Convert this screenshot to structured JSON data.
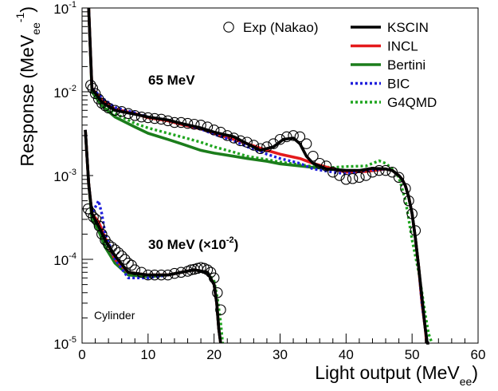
{
  "chart_data": {
    "type": "line",
    "xlabel": "Light output (MeV",
    "xlabel_sub": "ee",
    "xlabel_tail": ")",
    "ylabel": "Response (MeV",
    "ylabel_sub": "ee",
    "ylabel_sup": "-1",
    "ylabel_tail": ")",
    "xlim": [
      0,
      60
    ],
    "ylim": [
      1e-05,
      0.1
    ],
    "yscale": "log",
    "grid": false,
    "legend_position": "top-right",
    "x_ticks": [
      "0",
      "10",
      "20",
      "30",
      "40",
      "50",
      "60"
    ],
    "y_ticks": [
      {
        "base": "10",
        "exp": "-5",
        "value": 1e-05
      },
      {
        "base": "10",
        "exp": "-4",
        "value": 0.0001
      },
      {
        "base": "10",
        "exp": "-3",
        "value": 0.001
      },
      {
        "base": "10",
        "exp": "-2",
        "value": 0.01
      },
      {
        "base": "10",
        "exp": "-1",
        "value": 0.1
      }
    ],
    "annotations": {
      "e65": "65 MeV",
      "e30_main": "30 MeV (×10",
      "e30_exp": "-2",
      "e30_tail": ")",
      "geometry": "Cylinder"
    },
    "legend": [
      {
        "name": "Exp (Nakao)",
        "style": "marker"
      },
      {
        "name": "KSCIN",
        "style": "line"
      },
      {
        "name": "INCL",
        "style": "line"
      },
      {
        "name": "Bertini",
        "style": "line"
      },
      {
        "name": "BIC",
        "style": "line"
      },
      {
        "name": "G4QMD",
        "style": "line"
      }
    ],
    "colors": {
      "KSCIN": "#000000",
      "INCL": "#e41a1c",
      "Bertini": "#1b7d1b",
      "BIC": "#1f1fdc",
      "G4QMD": "#1fa51f"
    },
    "series": [
      {
        "name": "KSCIN",
        "group": "65 MeV",
        "x": [
          1.0,
          1.5,
          3,
          5,
          8,
          10,
          13,
          15,
          18,
          20,
          23,
          25,
          27,
          29,
          30.5,
          32,
          33,
          34,
          35,
          37,
          40,
          42,
          44,
          46,
          47,
          48,
          48.5,
          49,
          49.5,
          50,
          50.5,
          51,
          51.5,
          52,
          52.3,
          52.6
        ],
        "y": [
          0.1,
          0.011,
          0.0075,
          0.006,
          0.0054,
          0.005,
          0.0046,
          0.0042,
          0.0037,
          0.0033,
          0.0029,
          0.0024,
          0.002,
          0.0022,
          0.0027,
          0.0028,
          0.0024,
          0.0017,
          0.0014,
          0.0012,
          0.00115,
          0.00115,
          0.00122,
          0.0012,
          0.00115,
          0.001,
          0.0009,
          0.00075,
          0.00055,
          0.00035,
          0.00018,
          8e-05,
          3.5e-05,
          1.5e-05,
          1e-05,
          1e-05
        ]
      },
      {
        "name": "INCL",
        "group": "65 MeV",
        "x": [
          1.0,
          1.5,
          3,
          5,
          8,
          10,
          13,
          15,
          18,
          20,
          23,
          25,
          28,
          30,
          33,
          35,
          38,
          40,
          43,
          46,
          47,
          48,
          48.5,
          49,
          49.5,
          50,
          50.5,
          51,
          51.5,
          52,
          52.2
        ],
        "y": [
          0.1,
          0.011,
          0.008,
          0.0062,
          0.0055,
          0.0049,
          0.0045,
          0.0041,
          0.0036,
          0.0032,
          0.0027,
          0.0024,
          0.002,
          0.0018,
          0.0016,
          0.0014,
          0.0012,
          0.0011,
          0.00112,
          0.0012,
          0.00115,
          0.001,
          0.0009,
          0.00075,
          0.00055,
          0.00035,
          0.00018,
          8e-05,
          3e-05,
          1.5e-05,
          1e-05
        ]
      },
      {
        "name": "Bertini",
        "group": "65 MeV",
        "x": [
          1.0,
          1.5,
          3,
          5,
          8,
          10,
          13,
          15,
          18,
          20,
          23,
          25,
          28,
          30,
          33,
          35,
          38,
          40,
          43,
          46,
          47,
          48,
          48.5,
          49,
          49.5,
          50,
          50.5,
          51,
          51.5,
          52,
          52.3
        ],
        "y": [
          0.1,
          0.01,
          0.0068,
          0.005,
          0.0038,
          0.0032,
          0.0027,
          0.0024,
          0.002,
          0.00185,
          0.0017,
          0.0016,
          0.00148,
          0.00138,
          0.0013,
          0.00125,
          0.0012,
          0.00112,
          0.00112,
          0.0012,
          0.00115,
          0.001,
          0.0009,
          0.00075,
          0.00055,
          0.00035,
          0.00018,
          8e-05,
          3e-05,
          1.5e-05,
          1e-05
        ]
      },
      {
        "name": "BIC",
        "group": "65 MeV",
        "x": [
          1.0,
          1.5,
          3,
          5,
          8,
          10,
          13,
          15,
          18,
          20,
          23,
          25,
          28,
          30,
          33,
          35,
          38,
          40,
          43,
          46,
          47,
          48,
          48.5,
          49,
          49.5,
          50,
          50.5,
          51,
          51.5,
          52,
          52.3
        ],
        "y": [
          0.1,
          0.011,
          0.0085,
          0.0065,
          0.0056,
          0.005,
          0.0046,
          0.0042,
          0.0036,
          0.0031,
          0.0026,
          0.0022,
          0.0018,
          0.0016,
          0.0014,
          0.0012,
          0.0011,
          0.00105,
          0.00115,
          0.0012,
          0.00115,
          0.001,
          0.0009,
          0.00075,
          0.00055,
          0.00035,
          0.00018,
          8e-05,
          3e-05,
          1.5e-05,
          1e-05
        ]
      },
      {
        "name": "G4QMD",
        "group": "65 MeV",
        "x": [
          1.0,
          1.5,
          3,
          5,
          8,
          10,
          13,
          15,
          18,
          20,
          23,
          25,
          28,
          30,
          33,
          35,
          38,
          40,
          43,
          45,
          46,
          47,
          48,
          48.5,
          49,
          49.5,
          50,
          50.5,
          51,
          51.5,
          52,
          52.5,
          53
        ],
        "y": [
          0.1,
          0.011,
          0.0075,
          0.0055,
          0.0042,
          0.0037,
          0.0032,
          0.0029,
          0.0025,
          0.0022,
          0.0019,
          0.0017,
          0.00155,
          0.00145,
          0.00135,
          0.00128,
          0.00125,
          0.00128,
          0.0013,
          0.0015,
          0.0014,
          0.0012,
          0.00095,
          0.0007,
          0.0005,
          0.0003,
          0.00017,
          0.00011,
          7e-05,
          4e-05,
          2.2e-05,
          1.3e-05,
          1e-05
        ]
      },
      {
        "name": "KSCIN",
        "group": "30 MeV",
        "x": [
          0.5,
          1.0,
          1.5,
          2.5,
          3.5,
          5,
          7,
          10,
          13,
          15,
          17,
          19,
          20,
          20.4,
          20.7,
          21.0
        ],
        "y": [
          0.0035,
          0.0008,
          0.00035,
          0.00025,
          0.00017,
          0.00011,
          7e-05,
          6.5e-05,
          6.5e-05,
          7e-05,
          7.5e-05,
          7e-05,
          5e-05,
          3e-05,
          1.5e-05,
          1e-05
        ]
      },
      {
        "name": "INCL",
        "group": "30 MeV",
        "x": [
          0.5,
          1.0,
          1.5,
          2.5,
          3.5,
          5,
          7,
          10,
          13,
          15,
          17,
          19,
          20,
          20.4,
          20.7,
          21.0
        ],
        "y": [
          0.0035,
          0.0008,
          0.00035,
          0.00028,
          0.00018,
          0.0001,
          7e-05,
          6.5e-05,
          6.5e-05,
          7e-05,
          7.5e-05,
          7e-05,
          5e-05,
          3e-05,
          1.5e-05,
          1e-05
        ]
      },
      {
        "name": "Bertini",
        "group": "30 MeV",
        "x": [
          0.5,
          1.0,
          1.5,
          2.5,
          3.5,
          5,
          7,
          10,
          13,
          15,
          17,
          19,
          20,
          20.4,
          20.7,
          21.0
        ],
        "y": [
          0.0035,
          0.0008,
          0.0003,
          0.00022,
          0.00014,
          9e-05,
          6.5e-05,
          6.2e-05,
          6.5e-05,
          7e-05,
          7.5e-05,
          7e-05,
          5e-05,
          3e-05,
          1.5e-05,
          1e-05
        ]
      },
      {
        "name": "BIC",
        "group": "30 MeV",
        "x": [
          0.5,
          1.0,
          1.5,
          2.5,
          3.0,
          3.5,
          5,
          7,
          10,
          13,
          15,
          17,
          19,
          20,
          20.4,
          20.7,
          21.0
        ],
        "y": [
          0.0035,
          0.0008,
          0.00035,
          0.0005,
          0.00035,
          0.0002,
          0.0001,
          6e-05,
          6e-05,
          6.5e-05,
          7e-05,
          7.5e-05,
          7e-05,
          5e-05,
          3e-05,
          1.5e-05,
          1e-05
        ]
      },
      {
        "name": "G4QMD",
        "group": "30 MeV",
        "x": [
          0.5,
          1.0,
          1.5,
          2.5,
          3.5,
          5,
          7,
          10,
          13,
          15,
          17,
          19,
          20,
          20.5,
          21.0,
          21.3
        ],
        "y": [
          0.0035,
          0.0008,
          0.00035,
          0.00025,
          0.00016,
          0.0001,
          7e-05,
          6.5e-05,
          6.5e-05,
          7e-05,
          7.5e-05,
          7e-05,
          5.5e-05,
          3.5e-05,
          1.8e-05,
          1e-05
        ]
      }
    ],
    "experimental": [
      {
        "group": "65 MeV",
        "x": [
          1.3,
          1.6,
          2.0,
          2.5,
          3.0,
          3.5,
          4.0,
          5.0,
          6.0,
          7.0,
          8.0,
          9.0,
          10.0,
          11.0,
          12.0,
          13.0,
          14.0,
          15.0,
          16.0,
          17.0,
          18.0,
          19.0,
          20.0,
          21.0,
          22.0,
          23.0,
          24.0,
          25.0,
          26.0,
          27.0,
          28.0,
          29.0,
          30.0,
          31.0,
          32.0,
          33.0,
          34.0,
          35.0,
          36.0,
          37.0,
          38.0,
          39.0,
          40.0,
          41.0,
          42.0,
          43.0,
          44.0,
          45.0,
          46.0,
          47.0,
          48.0,
          49.0,
          49.5,
          50.0,
          50.5
        ],
        "y": [
          0.012,
          0.011,
          0.0095,
          0.0082,
          0.0073,
          0.0068,
          0.0064,
          0.006,
          0.0058,
          0.0055,
          0.0052,
          0.005,
          0.0049,
          0.0048,
          0.0047,
          0.0045,
          0.0043,
          0.0043,
          0.0042,
          0.0041,
          0.004,
          0.0038,
          0.0035,
          0.0033,
          0.003,
          0.0028,
          0.0026,
          0.0025,
          0.0023,
          0.0021,
          0.0022,
          0.0024,
          0.0027,
          0.0029,
          0.003,
          0.0029,
          0.0024,
          0.0017,
          0.0014,
          0.0013,
          0.0011,
          0.001,
          0.0009,
          0.00092,
          0.00095,
          0.001,
          0.0011,
          0.00115,
          0.00115,
          0.0011,
          0.00095,
          0.0007,
          0.0005,
          0.00035,
          0.00022
        ]
      },
      {
        "group": "30 MeV",
        "x": [
          0.9,
          1.3,
          1.7,
          2.1,
          2.6,
          3.0,
          3.5,
          4.0,
          4.5,
          5.0,
          5.5,
          6.0,
          6.5,
          7.0,
          7.5,
          8.0,
          9.0,
          10.0,
          11.0,
          12.0,
          13.0,
          14.0,
          15.0,
          16.0,
          16.5,
          17.0,
          17.5,
          18.0,
          18.5,
          19.0,
          19.5,
          20.0,
          20.5,
          21.0
        ],
        "y": [
          0.0004,
          0.00036,
          0.00032,
          0.0003,
          0.00025,
          0.0002,
          0.00017,
          0.00015,
          0.00014,
          0.00013,
          0.00012,
          0.00011,
          0.0001,
          9e-05,
          8.5e-05,
          7.5e-05,
          7e-05,
          6.5e-05,
          6.5e-05,
          6.5e-05,
          6.5e-05,
          6.8e-05,
          7e-05,
          7.2e-05,
          7.5e-05,
          7.6e-05,
          7.8e-05,
          8e-05,
          7.8e-05,
          7.5e-05,
          7e-05,
          6e-05,
          4e-05,
          2.5e-05
        ]
      }
    ]
  }
}
